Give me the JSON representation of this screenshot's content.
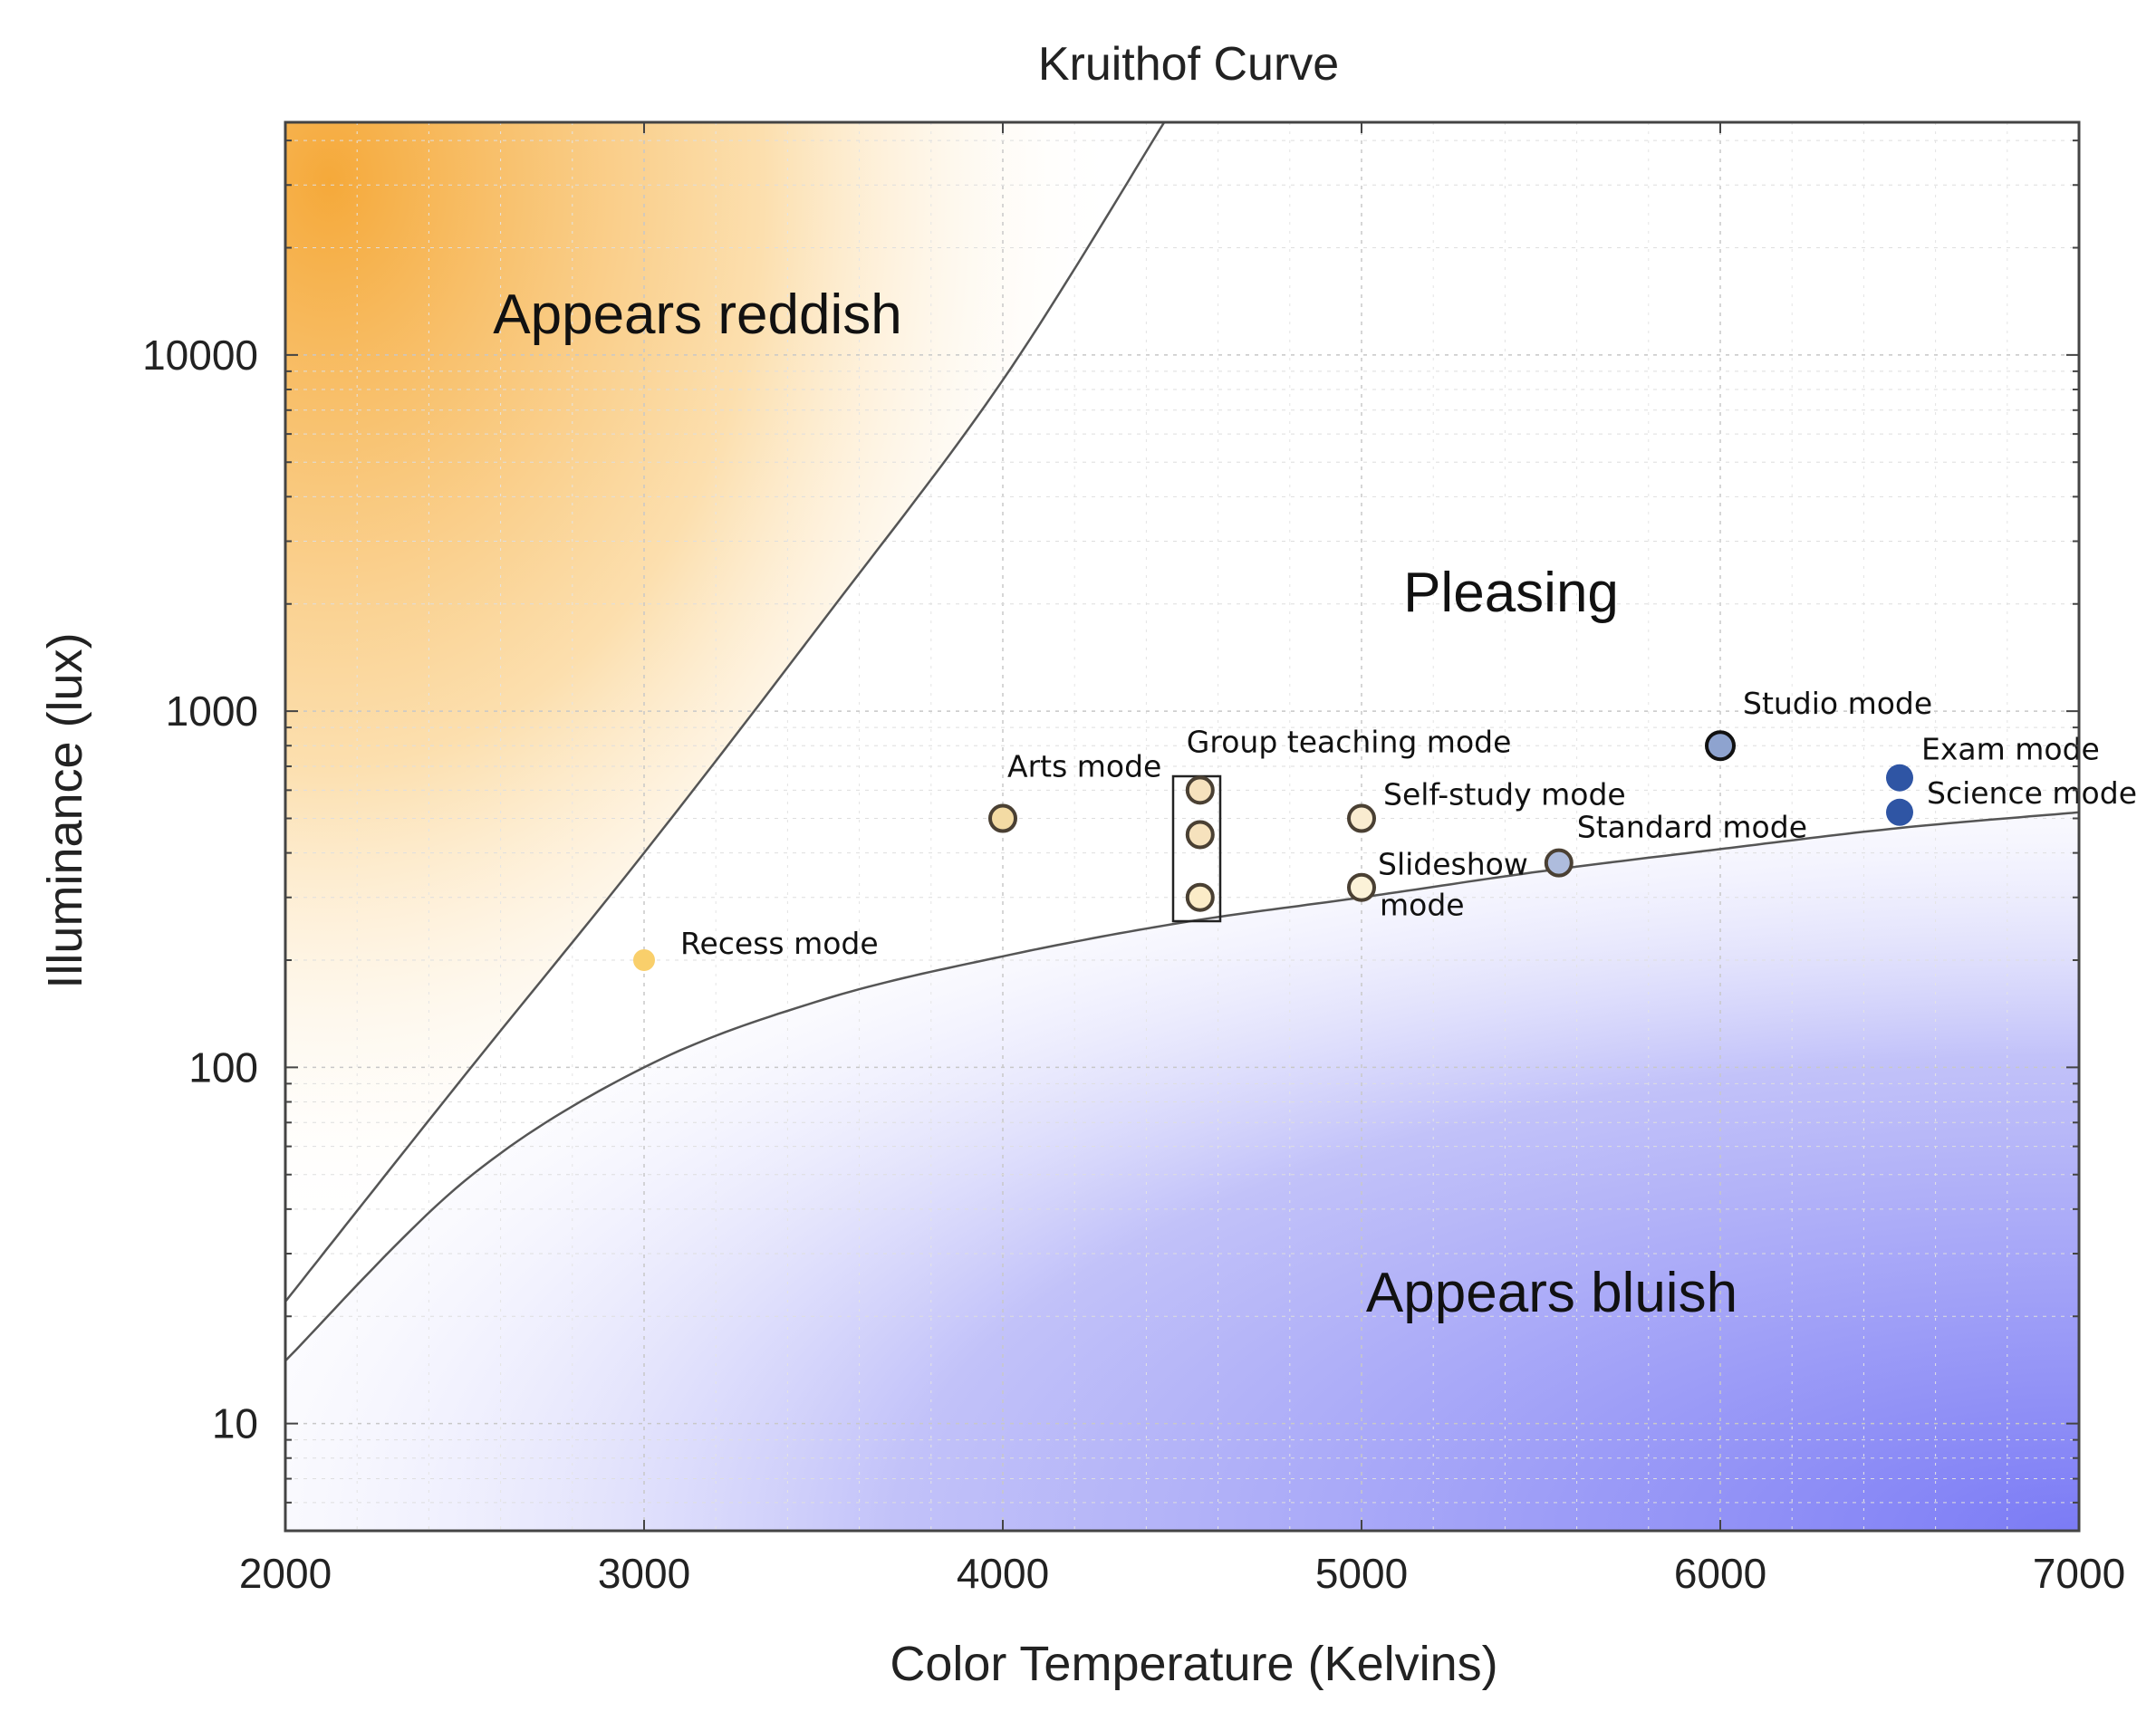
{
  "chart_data": {
    "type": "scatter",
    "title": "Kruithof Curve",
    "xlabel": "Color Temperature (Kelvins)",
    "ylabel": "Illuminance (lux)",
    "xlim": [
      2000,
      7000
    ],
    "ylim": [
      5,
      45000
    ],
    "yscale": "log",
    "xticks": [
      2000,
      3000,
      4000,
      5000,
      6000,
      7000
    ],
    "yticks": [
      10,
      100,
      1000,
      10000
    ],
    "ytick_labels": [
      "10",
      "100",
      "1000",
      "10000"
    ],
    "grid": true,
    "regions": [
      {
        "name": "Appears reddish",
        "color": "#f5a93a"
      },
      {
        "name": "Pleasing",
        "color": "#ffffff"
      },
      {
        "name": "Appears bluish",
        "color": "#7b7bf5"
      }
    ],
    "upper_curve": {
      "x": [
        2000,
        2500,
        3000,
        3500,
        4000,
        4450
      ],
      "y": [
        22,
        95,
        400,
        1800,
        8500,
        45000
      ]
    },
    "lower_curve": {
      "x": [
        2000,
        2500,
        3000,
        3500,
        4000,
        4500,
        5000,
        5500,
        6000,
        6500,
        7000
      ],
      "y": [
        15,
        48,
        100,
        155,
        205,
        255,
        300,
        355,
        410,
        470,
        520
      ]
    },
    "points": [
      {
        "label": "Recess mode",
        "x": 3000,
        "y": 200,
        "color": "#f9cf6b",
        "fill": "#f9cf6b",
        "style": "small"
      },
      {
        "label": "Arts mode",
        "x": 4000,
        "y": 500,
        "color": "#e8c98f",
        "fill": "#f3dba4",
        "style": "ring"
      },
      {
        "label": "Group teaching mode",
        "x": 4550,
        "y": 600,
        "color": "#e6cfa3",
        "fill": "#f6e2bd",
        "style": "ring"
      },
      {
        "label": "",
        "x": 4550,
        "y": 450,
        "color": "#e6cfa3",
        "fill": "#f6e2bd",
        "style": "ring"
      },
      {
        "label": "",
        "x": 4550,
        "y": 300,
        "color": "#ecdcb8",
        "fill": "#fbecc8",
        "style": "ring"
      },
      {
        "label": "Self-study mode",
        "x": 5000,
        "y": 500,
        "color": "#ebdcbc",
        "fill": "#f9ecd0",
        "style": "ring"
      },
      {
        "label": "Slideshow",
        "label2": "mode",
        "x": 5000,
        "y": 320,
        "color": "#f0e6c6",
        "fill": "#fbf2d8",
        "style": "ring"
      },
      {
        "label": "Standard mode",
        "x": 5550,
        "y": 375,
        "color": "#9eaed2",
        "fill": "#aebcdd",
        "style": "ring"
      },
      {
        "label": "Studio mode",
        "x": 6000,
        "y": 800,
        "color": "#7f97c7",
        "fill": "#8ea3cf",
        "style": "ring-dark"
      },
      {
        "label": "Exam mode",
        "x": 6500,
        "y": 650,
        "color": "#2f55a4",
        "fill": "#2f55a4",
        "style": "solid"
      },
      {
        "label": "Science mode",
        "x": 6500,
        "y": 520,
        "color": "#2f55a4",
        "fill": "#2f55a4",
        "style": "solid"
      }
    ]
  }
}
